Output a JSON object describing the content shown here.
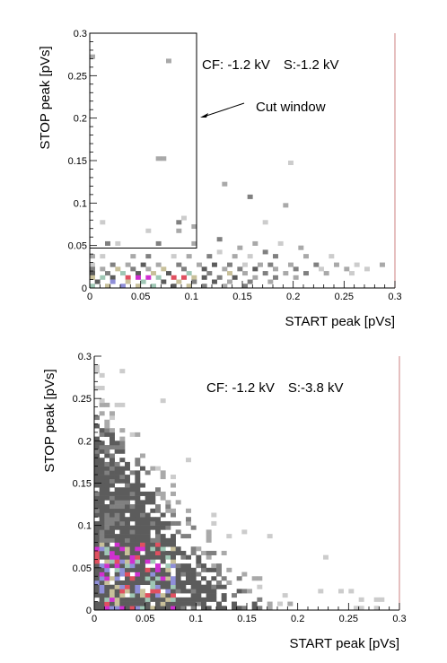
{
  "chart_data": [
    {
      "type": "heatmap",
      "xlabel": "START peak [pVs]",
      "ylabel": "STOP peak [pVs]",
      "xlim": [
        0,
        0.3
      ],
      "ylim": [
        0,
        0.3
      ],
      "xticks": [
        "0",
        "0.05",
        "0.1",
        "0.15",
        "0.2",
        "0.25",
        "0.3"
      ],
      "yticks": [
        "0",
        "0.05",
        "0.1",
        "0.15",
        "0.2",
        "0.25",
        "0.3"
      ],
      "bin_size": 0.005,
      "annotation": "CF: -1.2 kV   S:-1.2 kV",
      "cut_label": "Cut window",
      "cut_window": {
        "x": [
          0,
          0.105
        ],
        "y": [
          0.047,
          0.3
        ]
      },
      "cells": [
        [
          0.0,
          0.27,
          2
        ],
        [
          0.075,
          0.265,
          2
        ],
        [
          0.065,
          0.15,
          2
        ],
        [
          0.07,
          0.15,
          2
        ],
        [
          0.195,
          0.145,
          1
        ],
        [
          0.13,
          0.12,
          2
        ],
        [
          0.155,
          0.105,
          3
        ],
        [
          0.09,
          0.08,
          1
        ],
        [
          0.01,
          0.075,
          1
        ],
        [
          0.085,
          0.075,
          3
        ],
        [
          0.19,
          0.095,
          2
        ],
        [
          0.1,
          0.07,
          2
        ],
        [
          0.055,
          0.065,
          1
        ],
        [
          0.085,
          0.065,
          2
        ],
        [
          0.17,
          0.075,
          1
        ],
        [
          0.015,
          0.05,
          3
        ],
        [
          0.025,
          0.05,
          1
        ],
        [
          0.065,
          0.05,
          3
        ],
        [
          0.1,
          0.05,
          2
        ],
        [
          0.125,
          0.055,
          3
        ],
        [
          0.145,
          0.045,
          2
        ],
        [
          0.16,
          0.05,
          2
        ],
        [
          0.185,
          0.05,
          1
        ],
        [
          0.205,
          0.045,
          2
        ],
        [
          0.125,
          0.04,
          1
        ],
        [
          0.17,
          0.04,
          3
        ],
        [
          0.0,
          0.035,
          2
        ],
        [
          0.01,
          0.035,
          1
        ],
        [
          0.04,
          0.035,
          2
        ],
        [
          0.055,
          0.035,
          3
        ],
        [
          0.08,
          0.035,
          1
        ],
        [
          0.095,
          0.035,
          2
        ],
        [
          0.115,
          0.035,
          3
        ],
        [
          0.14,
          0.035,
          2
        ],
        [
          0.155,
          0.035,
          1
        ],
        [
          0.18,
          0.035,
          3
        ],
        [
          0.21,
          0.035,
          2
        ],
        [
          0.235,
          0.035,
          1
        ],
        [
          0.0,
          0.025,
          1
        ],
        [
          0.02,
          0.025,
          3
        ],
        [
          0.035,
          0.025,
          2
        ],
        [
          0.05,
          0.025,
          4
        ],
        [
          0.065,
          0.025,
          2
        ],
        [
          0.085,
          0.025,
          3
        ],
        [
          0.105,
          0.025,
          2
        ],
        [
          0.12,
          0.025,
          4
        ],
        [
          0.135,
          0.025,
          3
        ],
        [
          0.15,
          0.025,
          1
        ],
        [
          0.165,
          0.025,
          2
        ],
        [
          0.175,
          0.025,
          3
        ],
        [
          0.195,
          0.025,
          2
        ],
        [
          0.22,
          0.025,
          3
        ],
        [
          0.24,
          0.025,
          2
        ],
        [
          0.26,
          0.025,
          1
        ],
        [
          0.285,
          0.025,
          2
        ],
        [
          0.0,
          0.02,
          3
        ],
        [
          0.01,
          0.02,
          2
        ],
        [
          0.025,
          0.02,
          5
        ],
        [
          0.04,
          0.02,
          3
        ],
        [
          0.055,
          0.02,
          2
        ],
        [
          0.07,
          0.02,
          5
        ],
        [
          0.09,
          0.02,
          3
        ],
        [
          0.11,
          0.02,
          4
        ],
        [
          0.13,
          0.02,
          2
        ],
        [
          0.145,
          0.02,
          3
        ],
        [
          0.16,
          0.02,
          4
        ],
        [
          0.18,
          0.02,
          2
        ],
        [
          0.2,
          0.02,
          3
        ],
        [
          0.225,
          0.02,
          1
        ],
        [
          0.25,
          0.02,
          2
        ],
        [
          0.27,
          0.02,
          1
        ],
        [
          0.0,
          0.015,
          4
        ],
        [
          0.015,
          0.015,
          3
        ],
        [
          0.03,
          0.015,
          6
        ],
        [
          0.045,
          0.015,
          4
        ],
        [
          0.06,
          0.015,
          5
        ],
        [
          0.075,
          0.015,
          4
        ],
        [
          0.095,
          0.015,
          6
        ],
        [
          0.115,
          0.015,
          3
        ],
        [
          0.135,
          0.015,
          5
        ],
        [
          0.15,
          0.015,
          2
        ],
        [
          0.17,
          0.015,
          3
        ],
        [
          0.19,
          0.015,
          2
        ],
        [
          0.21,
          0.015,
          3
        ],
        [
          0.23,
          0.015,
          2
        ],
        [
          0.255,
          0.015,
          1
        ],
        [
          0.0,
          0.01,
          5
        ],
        [
          0.01,
          0.01,
          6
        ],
        [
          0.02,
          0.01,
          4
        ],
        [
          0.035,
          0.01,
          8
        ],
        [
          0.045,
          0.01,
          9
        ],
        [
          0.055,
          0.01,
          9
        ],
        [
          0.065,
          0.01,
          6
        ],
        [
          0.08,
          0.01,
          8
        ],
        [
          0.09,
          0.01,
          8
        ],
        [
          0.1,
          0.01,
          5
        ],
        [
          0.11,
          0.01,
          4
        ],
        [
          0.125,
          0.01,
          3
        ],
        [
          0.14,
          0.01,
          4
        ],
        [
          0.16,
          0.01,
          2
        ],
        [
          0.18,
          0.01,
          3
        ],
        [
          0.2,
          0.01,
          2
        ],
        [
          0.005,
          0.005,
          4
        ],
        [
          0.02,
          0.005,
          7
        ],
        [
          0.035,
          0.005,
          5
        ],
        [
          0.05,
          0.005,
          6
        ],
        [
          0.07,
          0.005,
          4
        ],
        [
          0.085,
          0.005,
          5
        ],
        [
          0.1,
          0.005,
          3
        ],
        [
          0.12,
          0.005,
          4
        ],
        [
          0.135,
          0.005,
          2
        ],
        [
          0.155,
          0.005,
          3
        ],
        [
          0.175,
          0.005,
          2
        ],
        [
          0.0,
          0.0,
          6
        ],
        [
          0.015,
          0.0,
          5
        ],
        [
          0.03,
          0.0,
          7
        ],
        [
          0.045,
          0.0,
          5
        ],
        [
          0.06,
          0.0,
          6
        ],
        [
          0.08,
          0.0,
          4
        ],
        [
          0.095,
          0.0,
          5
        ],
        [
          0.11,
          0.0,
          3
        ],
        [
          0.13,
          0.0,
          2
        ],
        [
          0.15,
          0.0,
          3
        ]
      ]
    },
    {
      "type": "heatmap",
      "xlabel": "START peak [pVs]",
      "ylabel": "STOP peak [pVs]",
      "xlim": [
        0,
        0.3
      ],
      "ylim": [
        0,
        0.3
      ],
      "xticks": [
        "0",
        "0.05",
        "0.1",
        "0.15",
        "0.2",
        "0.25",
        "0.3"
      ],
      "yticks": [
        "0",
        "0.05",
        "0.1",
        "0.15",
        "0.2",
        "0.25",
        "0.3"
      ],
      "bin_size": 0.005,
      "annotation": "CF: -1.2 kV   S:-3.8 kV",
      "density": {
        "ridge_y_at_x0": 0.16,
        "ridge_x_at_y0": 0.12,
        "spread": 0.035,
        "sparse_x_extent": 0.3,
        "sparse_y_extent": 0.3
      }
    }
  ]
}
